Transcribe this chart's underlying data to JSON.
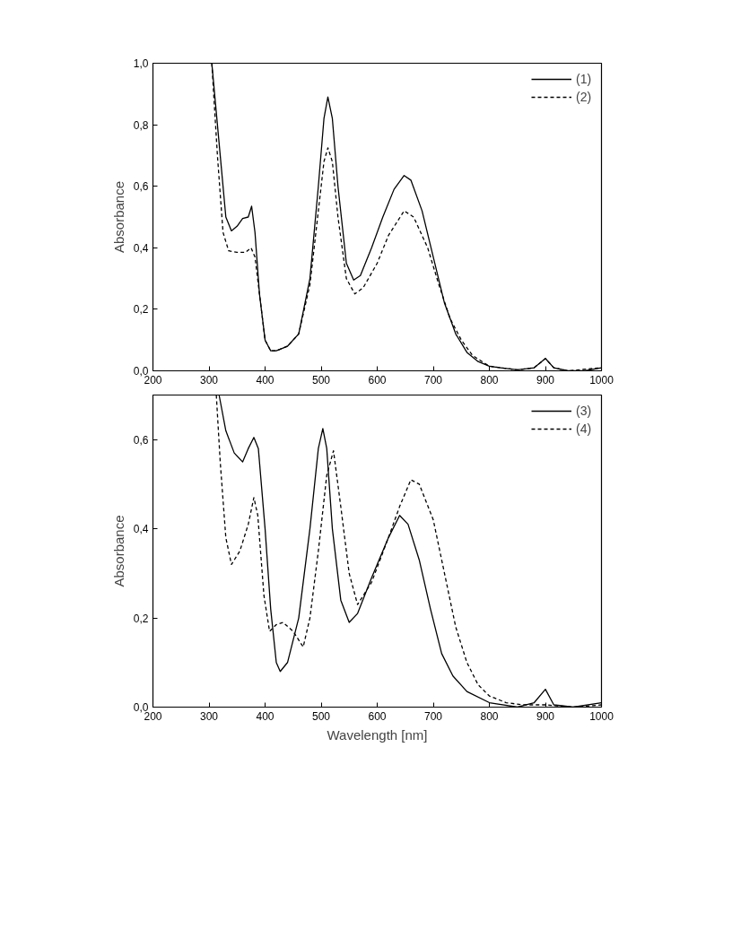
{
  "chart_data": [
    {
      "type": "line",
      "ylabel": "Absorbance",
      "xlim": [
        200,
        1000
      ],
      "ylim": [
        0,
        1.0
      ],
      "xticks": [
        200,
        300,
        400,
        500,
        600,
        700,
        800,
        900,
        1000
      ],
      "yticks": [
        {
          "value": 0,
          "label": "0,0"
        },
        {
          "value": 0.2,
          "label": "0,2"
        },
        {
          "value": 0.4,
          "label": "0,4"
        },
        {
          "value": 0.6,
          "label": "0,6"
        },
        {
          "value": 0.8,
          "label": "0,8"
        },
        {
          "value": 1.0,
          "label": "1,0"
        }
      ],
      "legend": "top right",
      "series": [
        {
          "name": "(1)",
          "color": "#000000",
          "line_style": "solid",
          "x": [
            305,
            320,
            330,
            340,
            350,
            360,
            370,
            376,
            382,
            390,
            400,
            410,
            420,
            440,
            460,
            480,
            495,
            505,
            512,
            520,
            530,
            545,
            558,
            570,
            590,
            610,
            630,
            648,
            660,
            680,
            700,
            720,
            740,
            760,
            780,
            800,
            820,
            850,
            880,
            900,
            915,
            940,
            970,
            1000
          ],
          "values": [
            1.0,
            0.7,
            0.5,
            0.455,
            0.47,
            0.495,
            0.5,
            0.535,
            0.45,
            0.25,
            0.1,
            0.065,
            0.065,
            0.08,
            0.12,
            0.3,
            0.6,
            0.82,
            0.89,
            0.82,
            0.6,
            0.35,
            0.295,
            0.31,
            0.4,
            0.5,
            0.59,
            0.635,
            0.62,
            0.52,
            0.37,
            0.22,
            0.12,
            0.06,
            0.03,
            0.015,
            0.01,
            0.003,
            0.01,
            0.04,
            0.01,
            0.0,
            0.0,
            0.01
          ]
        },
        {
          "name": "(2)",
          "color": "#000000",
          "line_style": "dashed",
          "x": [
            305,
            315,
            325,
            335,
            350,
            365,
            375,
            382,
            390,
            400,
            410,
            420,
            440,
            460,
            480,
            495,
            505,
            512,
            520,
            530,
            545,
            560,
            575,
            600,
            620,
            648,
            665,
            690,
            710,
            730,
            750,
            770,
            800,
            850,
            880,
            900,
            915,
            940,
            1000
          ],
          "values": [
            1.0,
            0.7,
            0.45,
            0.39,
            0.385,
            0.385,
            0.4,
            0.37,
            0.25,
            0.1,
            0.065,
            0.065,
            0.08,
            0.12,
            0.28,
            0.52,
            0.68,
            0.725,
            0.68,
            0.5,
            0.3,
            0.25,
            0.27,
            0.35,
            0.44,
            0.52,
            0.5,
            0.4,
            0.28,
            0.17,
            0.1,
            0.05,
            0.015,
            0.003,
            0.01,
            0.04,
            0.01,
            0.0,
            0.01
          ]
        }
      ]
    },
    {
      "type": "line",
      "xlabel": "Wavelength [nm]",
      "ylabel": "Absorbance",
      "xlim": [
        200,
        1000
      ],
      "ylim": [
        0,
        0.7
      ],
      "xticks": [
        200,
        300,
        400,
        500,
        600,
        700,
        800,
        900,
        1000
      ],
      "yticks": [
        {
          "value": 0,
          "label": "0,0"
        },
        {
          "value": 0.2,
          "label": "0,2"
        },
        {
          "value": 0.4,
          "label": "0,4"
        },
        {
          "value": 0.6,
          "label": "0,6"
        }
      ],
      "legend": "top right",
      "series": [
        {
          "name": "(3)",
          "color": "#000000",
          "line_style": "solid",
          "x": [
            318,
            330,
            345,
            360,
            370,
            380,
            388,
            400,
            410,
            420,
            427,
            440,
            460,
            480,
            495,
            503,
            510,
            520,
            535,
            550,
            565,
            590,
            620,
            640,
            655,
            675,
            695,
            715,
            735,
            760,
            800,
            850,
            880,
            900,
            915,
            950,
            1000
          ],
          "values": [
            0.7,
            0.62,
            0.57,
            0.55,
            0.58,
            0.605,
            0.58,
            0.4,
            0.22,
            0.1,
            0.08,
            0.1,
            0.2,
            0.4,
            0.58,
            0.625,
            0.58,
            0.4,
            0.24,
            0.19,
            0.21,
            0.29,
            0.38,
            0.43,
            0.41,
            0.33,
            0.22,
            0.12,
            0.07,
            0.035,
            0.01,
            0.0,
            0.01,
            0.04,
            0.005,
            0.0,
            0.01
          ]
        },
        {
          "name": "(4)",
          "color": "#000000",
          "line_style": "dashed",
          "x": [
            313,
            320,
            330,
            340,
            355,
            370,
            380,
            387,
            398,
            408,
            420,
            432,
            450,
            468,
            480,
            495,
            510,
            522,
            535,
            550,
            565,
            590,
            620,
            640,
            660,
            675,
            700,
            720,
            740,
            760,
            780,
            800,
            830,
            860,
            900,
            950,
            1000
          ],
          "values": [
            0.7,
            0.55,
            0.38,
            0.32,
            0.35,
            0.41,
            0.47,
            0.43,
            0.25,
            0.17,
            0.185,
            0.19,
            0.17,
            0.135,
            0.2,
            0.35,
            0.52,
            0.575,
            0.45,
            0.3,
            0.23,
            0.28,
            0.38,
            0.45,
            0.51,
            0.5,
            0.42,
            0.3,
            0.18,
            0.1,
            0.05,
            0.025,
            0.01,
            0.005,
            0.005,
            0.0,
            0.005
          ]
        }
      ]
    }
  ]
}
